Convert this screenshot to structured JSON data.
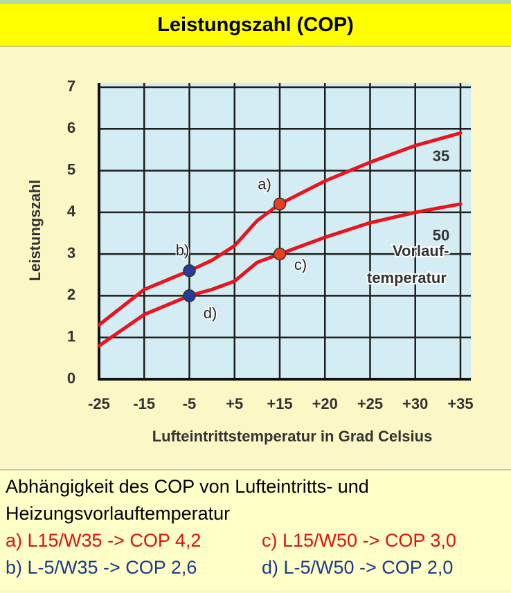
{
  "chart_data": {
    "type": "line",
    "title": "Leistungszahl (COP)",
    "x_label": "Lufteintrittstemperatur in Grad Celsius",
    "y_label": "Leistungszahl",
    "xlim": [
      -25,
      35
    ],
    "xticks": [
      -25,
      -15,
      -5,
      {
        "value": 5,
        "label": "+5"
      },
      {
        "value": 15,
        "label": "+15"
      },
      {
        "value": 20,
        "label": "+20"
      },
      {
        "value": 25,
        "label": "+25"
      },
      {
        "value": 30,
        "label": "+30"
      },
      {
        "value": 35,
        "label": "+35"
      }
    ],
    "ylim": [
      0,
      7
    ],
    "yticks": [
      0,
      1,
      2,
      3,
      4,
      5,
      6,
      7
    ],
    "grid": true,
    "series": [
      {
        "name": "35",
        "color": "#e8141e",
        "x": [
          -25,
          -15,
          -5,
          0,
          5,
          10,
          15,
          20,
          25,
          30,
          35
        ],
        "values": [
          1.3,
          2.15,
          2.6,
          2.85,
          3.2,
          3.8,
          4.2,
          4.75,
          5.2,
          5.6,
          5.9
        ]
      },
      {
        "name": "50",
        "color": "#e8141e",
        "x": [
          -25,
          -15,
          -5,
          0,
          5,
          10,
          15,
          20,
          25,
          30,
          35
        ],
        "values": [
          0.8,
          1.55,
          2.0,
          2.15,
          2.35,
          2.8,
          3.0,
          3.4,
          3.75,
          4.0,
          4.2
        ]
      }
    ],
    "markers": [
      {
        "label": "a)",
        "x": 15,
        "y": 4.2,
        "color": "#e8401e"
      },
      {
        "label": "b)",
        "x": -5,
        "y": 2.6,
        "color": "#2a3a9a"
      },
      {
        "label": "c)",
        "x": 15,
        "y": 3.0,
        "color": "#e8401e"
      },
      {
        "label": "d)",
        "x": -5,
        "y": 2.0,
        "color": "#2a3a9a"
      }
    ],
    "annotations": [
      "Vorlauf-",
      "temperatur"
    ]
  },
  "caption": {
    "lines": [
      "Abhängigkeit des COP von Lufteintritts- und",
      "Heizungsvorlauftemperatur"
    ],
    "items": [
      "a) L15/W35 -> COP 4,2",
      "c) L15/W50 -> COP 3,0",
      "b) L-5/W35 -> COP 2,6",
      "d) L-5/W50 -> COP 2,0"
    ]
  }
}
